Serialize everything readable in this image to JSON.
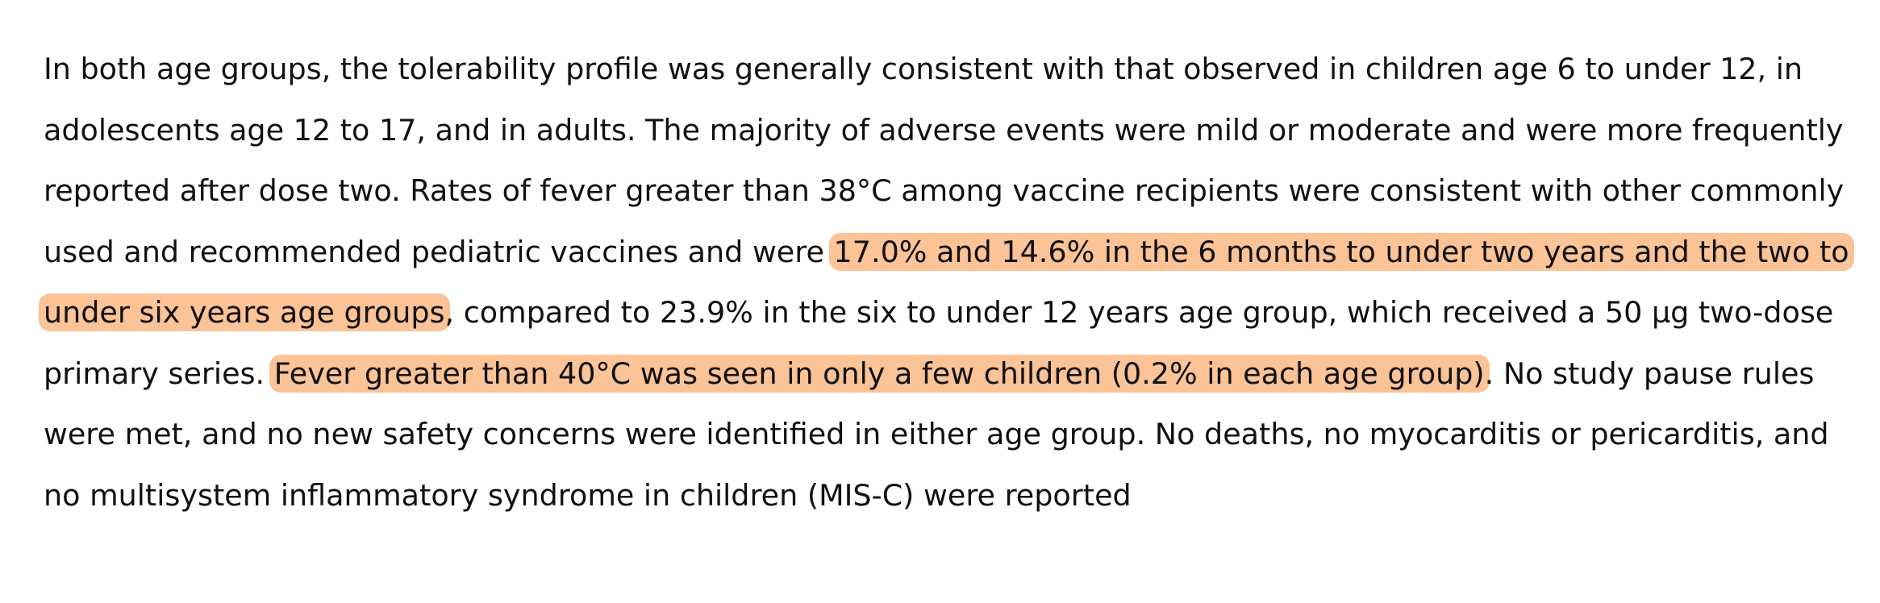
{
  "document": {
    "segments": [
      {
        "text": "In both age groups, the tolerability profile was generally consistent with that observed in children age 6 to under 12, in adolescents age 12 to 17, and in adults. The majority of adverse events were mild or moderate and were more frequently reported after dose two. Rates of fever greater than 38°C among vaccine recipients were consistent with other commonly used and recommended pediatric vaccines and were ",
        "highlighted": false
      },
      {
        "text": "17.0% and 14.6% in the 6 months to under two years and the two to under six years age groups",
        "highlighted": true
      },
      {
        "text": ", compared to 23.9% in the six to under 12 years age group, which received a 50 µg two-dose primary series. ",
        "highlighted": false
      },
      {
        "text": "Fever greater than 40°C was seen in only a few children (0.2% in each age group)",
        "highlighted": true
      },
      {
        "text": ". No study pause rules were met, and no new safety concerns were identified in either age group. No deaths, no myocarditis or pericarditis, and no multisystem inflammatory syndrome in children (MIS-C) were reported",
        "highlighted": false
      }
    ],
    "highlight_color": "#fbc396",
    "text_color": "#111111"
  }
}
